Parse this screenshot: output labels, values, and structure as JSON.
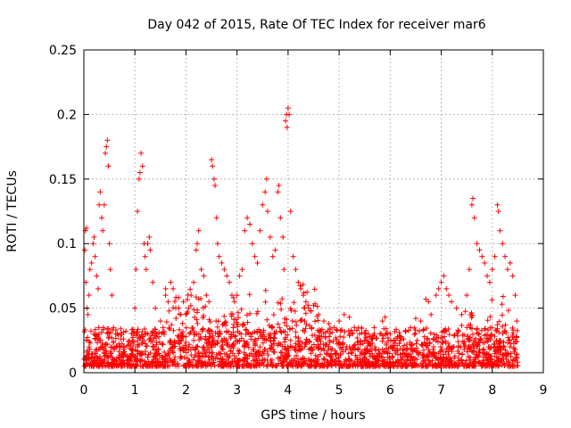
{
  "chart_data": {
    "type": "scatter",
    "title": "Day 042 of 2015, Rate Of TEC Index for receiver mar6",
    "xlabel": "GPS time / hours",
    "ylabel": "ROTI / TECUs",
    "xlim": [
      0,
      9
    ],
    "ylim": [
      0,
      0.25
    ],
    "xticks": [
      0,
      1,
      2,
      3,
      4,
      5,
      6,
      7,
      8,
      9
    ],
    "yticks": [
      0,
      0.05,
      0.1,
      0.15,
      0.2,
      0.25
    ],
    "ytick_labels": [
      "0",
      "0.05",
      "0.1",
      "0.15",
      "0.2",
      "0.25"
    ],
    "xtick_labels": [
      "0",
      "1",
      "2",
      "3",
      "4",
      "5",
      "6",
      "7",
      "8",
      "9"
    ],
    "grid": true,
    "marker": "plus",
    "color": "#ff0000",
    "series": [
      {
        "name": "ROTI",
        "points": [
          [
            0.02,
            0.095
          ],
          [
            0.03,
            0.11
          ],
          [
            0.05,
            0.112
          ],
          [
            0.04,
            0.07
          ],
          [
            0.06,
            0.05
          ],
          [
            0.08,
            0.045
          ],
          [
            0.1,
            0.06
          ],
          [
            0.12,
            0.08
          ],
          [
            0.15,
            0.085
          ],
          [
            0.18,
            0.1
          ],
          [
            0.2,
            0.105
          ],
          [
            0.22,
            0.09
          ],
          [
            0.25,
            0.075
          ],
          [
            0.28,
            0.065
          ],
          [
            0.3,
            0.13
          ],
          [
            0.32,
            0.14
          ],
          [
            0.35,
            0.12
          ],
          [
            0.37,
            0.11
          ],
          [
            0.4,
            0.13
          ],
          [
            0.42,
            0.17
          ],
          [
            0.44,
            0.175
          ],
          [
            0.46,
            0.18
          ],
          [
            0.48,
            0.16
          ],
          [
            0.5,
            0.1
          ],
          [
            0.52,
            0.08
          ],
          [
            0.55,
            0.06
          ],
          [
            0.58,
            0.035
          ],
          [
            0.1,
            0.02
          ],
          [
            0.2,
            0.03
          ],
          [
            0.3,
            0.025
          ],
          [
            0.4,
            0.015
          ],
          [
            1.0,
            0.05
          ],
          [
            1.02,
            0.08
          ],
          [
            1.05,
            0.125
          ],
          [
            1.08,
            0.15
          ],
          [
            1.1,
            0.155
          ],
          [
            1.12,
            0.17
          ],
          [
            1.15,
            0.16
          ],
          [
            1.18,
            0.1
          ],
          [
            1.2,
            0.09
          ],
          [
            1.22,
            0.08
          ],
          [
            1.25,
            0.1
          ],
          [
            1.28,
            0.105
          ],
          [
            1.3,
            0.095
          ],
          [
            1.35,
            0.07
          ],
          [
            1.4,
            0.05
          ],
          [
            1.5,
            0.04
          ],
          [
            1.55,
            0.035
          ],
          [
            1.6,
            0.06
          ],
          [
            1.65,
            0.055
          ],
          [
            1.7,
            0.07
          ],
          [
            1.75,
            0.065
          ],
          [
            1.8,
            0.05
          ],
          [
            1.9,
            0.045
          ],
          [
            1.95,
            0.055
          ],
          [
            2.0,
            0.045
          ],
          [
            2.05,
            0.05
          ],
          [
            2.1,
            0.06
          ],
          [
            2.15,
            0.07
          ],
          [
            2.2,
            0.095
          ],
          [
            2.22,
            0.1
          ],
          [
            2.25,
            0.11
          ],
          [
            2.3,
            0.08
          ],
          [
            2.35,
            0.075
          ],
          [
            2.4,
            0.06
          ],
          [
            2.45,
            0.055
          ],
          [
            2.5,
            0.165
          ],
          [
            2.52,
            0.16
          ],
          [
            2.55,
            0.15
          ],
          [
            2.57,
            0.145
          ],
          [
            2.6,
            0.12
          ],
          [
            2.62,
            0.1
          ],
          [
            2.65,
            0.09
          ],
          [
            2.7,
            0.085
          ],
          [
            2.75,
            0.08
          ],
          [
            2.8,
            0.075
          ],
          [
            2.85,
            0.07
          ],
          [
            2.9,
            0.06
          ],
          [
            2.95,
            0.055
          ],
          [
            3.0,
            0.06
          ],
          [
            3.05,
            0.075
          ],
          [
            3.1,
            0.08
          ],
          [
            3.15,
            0.11
          ],
          [
            3.2,
            0.12
          ],
          [
            3.25,
            0.115
          ],
          [
            3.3,
            0.1
          ],
          [
            3.35,
            0.09
          ],
          [
            3.4,
            0.085
          ],
          [
            3.45,
            0.11
          ],
          [
            3.5,
            0.13
          ],
          [
            3.55,
            0.14
          ],
          [
            3.58,
            0.15
          ],
          [
            3.6,
            0.125
          ],
          [
            3.65,
            0.105
          ],
          [
            3.7,
            0.09
          ],
          [
            3.75,
            0.095
          ],
          [
            3.8,
            0.14
          ],
          [
            3.82,
            0.145
          ],
          [
            3.85,
            0.12
          ],
          [
            3.9,
            0.105
          ],
          [
            3.92,
            0.08
          ],
          [
            3.95,
            0.195
          ],
          [
            3.97,
            0.2
          ],
          [
            4.0,
            0.205
          ],
          [
            4.02,
            0.2
          ],
          [
            3.98,
            0.19
          ],
          [
            4.05,
            0.125
          ],
          [
            4.1,
            0.09
          ],
          [
            4.15,
            0.08
          ],
          [
            4.2,
            0.07
          ],
          [
            4.25,
            0.065
          ],
          [
            4.3,
            0.06
          ],
          [
            4.35,
            0.055
          ],
          [
            4.4,
            0.05
          ],
          [
            4.45,
            0.048
          ],
          [
            4.5,
            0.052
          ],
          [
            4.6,
            0.045
          ],
          [
            4.7,
            0.04
          ],
          [
            4.8,
            0.038
          ],
          [
            4.9,
            0.035
          ],
          [
            5.0,
            0.04
          ],
          [
            5.1,
            0.045
          ],
          [
            5.2,
            0.043
          ],
          [
            5.3,
            0.035
          ],
          [
            5.4,
            0.03
          ],
          [
            5.5,
            0.025
          ],
          [
            5.6,
            0.022
          ],
          [
            5.7,
            0.02
          ],
          [
            5.8,
            0.03
          ],
          [
            5.85,
            0.04
          ],
          [
            5.9,
            0.043
          ],
          [
            6.0,
            0.03
          ],
          [
            6.1,
            0.025
          ],
          [
            6.2,
            0.028
          ],
          [
            6.3,
            0.032
          ],
          [
            6.4,
            0.035
          ],
          [
            6.5,
            0.042
          ],
          [
            6.6,
            0.04
          ],
          [
            6.7,
            0.057
          ],
          [
            6.75,
            0.055
          ],
          [
            6.8,
            0.045
          ],
          [
            6.9,
            0.06
          ],
          [
            6.95,
            0.065
          ],
          [
            7.0,
            0.07
          ],
          [
            7.05,
            0.075
          ],
          [
            7.1,
            0.065
          ],
          [
            7.15,
            0.06
          ],
          [
            7.2,
            0.055
          ],
          [
            7.3,
            0.05
          ],
          [
            7.4,
            0.045
          ],
          [
            7.5,
            0.06
          ],
          [
            7.55,
            0.08
          ],
          [
            7.6,
            0.13
          ],
          [
            7.62,
            0.135
          ],
          [
            7.65,
            0.12
          ],
          [
            7.7,
            0.1
          ],
          [
            7.75,
            0.095
          ],
          [
            7.8,
            0.09
          ],
          [
            7.85,
            0.085
          ],
          [
            7.9,
            0.075
          ],
          [
            7.95,
            0.07
          ],
          [
            8.0,
            0.08
          ],
          [
            8.05,
            0.09
          ],
          [
            8.1,
            0.13
          ],
          [
            8.12,
            0.125
          ],
          [
            8.15,
            0.11
          ],
          [
            8.2,
            0.1
          ],
          [
            8.25,
            0.09
          ],
          [
            8.3,
            0.08
          ],
          [
            8.35,
            0.085
          ],
          [
            8.4,
            0.075
          ],
          [
            8.45,
            0.06
          ],
          [
            8.48,
            0.04
          ],
          [
            0.05,
            0.01
          ],
          [
            0.15,
            0.012
          ],
          [
            0.25,
            0.018
          ],
          [
            0.35,
            0.02
          ],
          [
            0.45,
            0.015
          ],
          [
            0.55,
            0.012
          ],
          [
            0.65,
            0.02
          ],
          [
            0.75,
            0.015
          ],
          [
            0.85,
            0.013
          ],
          [
            0.95,
            0.018
          ],
          [
            1.05,
            0.02
          ],
          [
            1.15,
            0.015
          ],
          [
            1.25,
            0.012
          ],
          [
            1.35,
            0.02
          ],
          [
            1.45,
            0.018
          ],
          [
            1.55,
            0.022
          ],
          [
            1.65,
            0.015
          ],
          [
            1.75,
            0.02
          ],
          [
            1.85,
            0.025
          ],
          [
            1.95,
            0.018
          ],
          [
            2.05,
            0.02
          ],
          [
            2.15,
            0.025
          ],
          [
            2.25,
            0.03
          ],
          [
            2.35,
            0.02
          ],
          [
            2.45,
            0.018
          ],
          [
            2.55,
            0.025
          ],
          [
            2.65,
            0.03
          ],
          [
            2.75,
            0.025
          ],
          [
            2.85,
            0.02
          ],
          [
            2.95,
            0.022
          ],
          [
            3.05,
            0.025
          ],
          [
            3.15,
            0.02
          ],
          [
            3.25,
            0.03
          ],
          [
            3.35,
            0.025
          ],
          [
            3.45,
            0.02
          ],
          [
            3.55,
            0.018
          ],
          [
            3.65,
            0.025
          ],
          [
            3.75,
            0.03
          ],
          [
            3.85,
            0.022
          ],
          [
            3.95,
            0.02
          ],
          [
            4.05,
            0.025
          ],
          [
            4.15,
            0.02
          ],
          [
            4.25,
            0.018
          ],
          [
            4.35,
            0.022
          ],
          [
            4.45,
            0.015
          ],
          [
            4.55,
            0.02
          ],
          [
            4.65,
            0.018
          ],
          [
            4.75,
            0.015
          ],
          [
            4.85,
            0.012
          ],
          [
            4.95,
            0.015
          ],
          [
            5.05,
            0.018
          ],
          [
            5.15,
            0.02
          ],
          [
            5.25,
            0.015
          ],
          [
            5.35,
            0.012
          ],
          [
            5.45,
            0.015
          ],
          [
            5.55,
            0.018
          ],
          [
            5.65,
            0.013
          ],
          [
            5.75,
            0.01
          ],
          [
            5.85,
            0.012
          ],
          [
            5.95,
            0.015
          ],
          [
            6.05,
            0.012
          ],
          [
            6.15,
            0.01
          ],
          [
            6.25,
            0.015
          ],
          [
            6.35,
            0.012
          ],
          [
            6.45,
            0.018
          ],
          [
            6.55,
            0.015
          ],
          [
            6.65,
            0.013
          ],
          [
            6.75,
            0.018
          ],
          [
            6.85,
            0.02
          ],
          [
            6.95,
            0.015
          ],
          [
            7.05,
            0.012
          ],
          [
            7.15,
            0.018
          ],
          [
            7.25,
            0.02
          ],
          [
            7.35,
            0.015
          ],
          [
            7.45,
            0.018
          ],
          [
            7.55,
            0.02
          ],
          [
            7.65,
            0.025
          ],
          [
            7.75,
            0.018
          ],
          [
            7.85,
            0.015
          ],
          [
            7.95,
            0.02
          ],
          [
            8.05,
            0.022
          ],
          [
            8.15,
            0.018
          ],
          [
            8.25,
            0.015
          ],
          [
            8.35,
            0.02
          ],
          [
            8.45,
            0.018
          ]
        ]
      }
    ]
  }
}
